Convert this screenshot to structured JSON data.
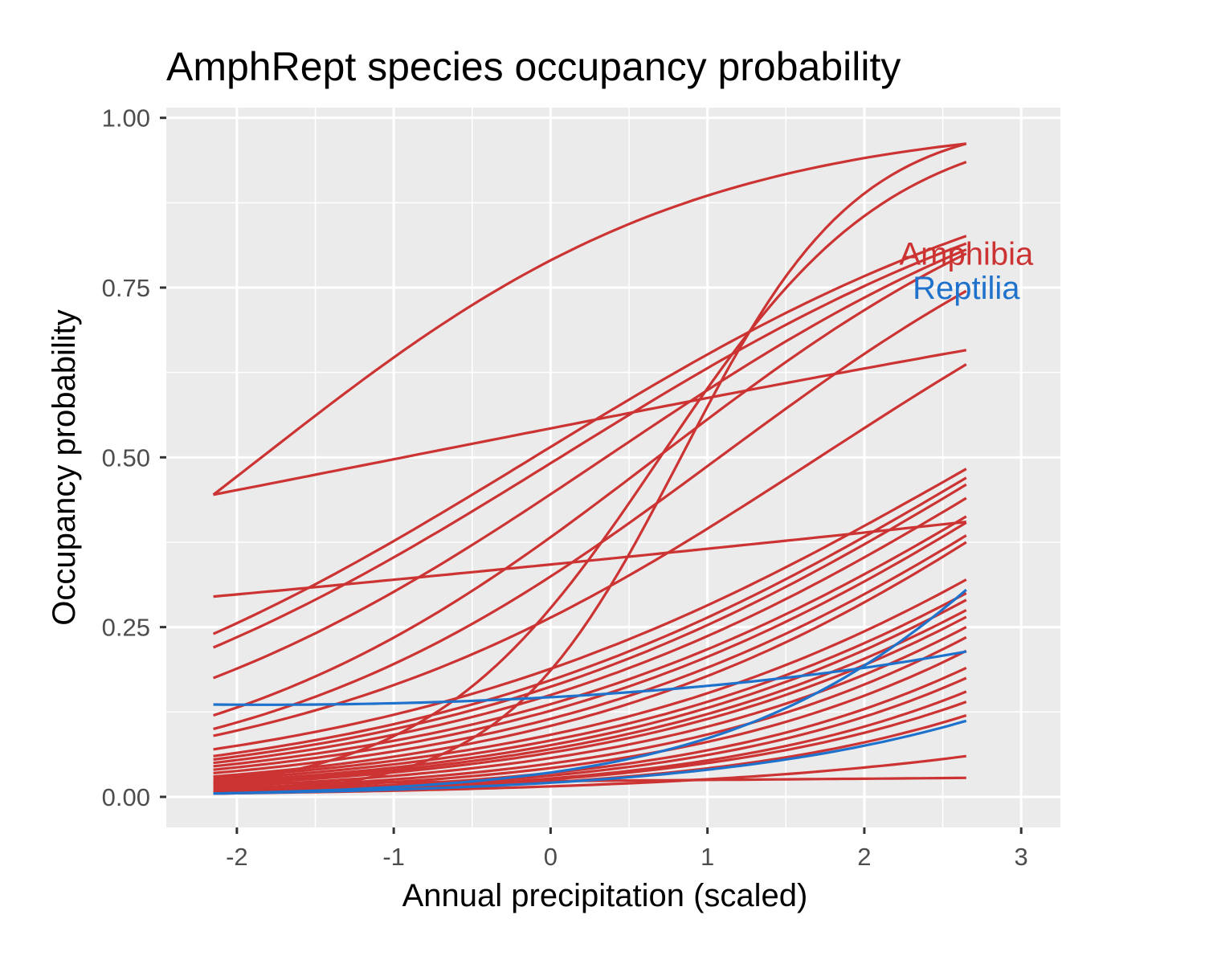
{
  "chart_data": {
    "type": "line",
    "title": "AmphRept species occupancy probability",
    "xlabel": "Annual precipitation (scaled)",
    "ylabel": "Occupancy probability",
    "xlim": [
      -2.45,
      3.25
    ],
    "ylim": [
      -0.045,
      1.015
    ],
    "x_ticks": [
      -2,
      -1,
      0,
      1,
      2,
      3
    ],
    "x_tick_labels": [
      "-2",
      "-1",
      "0",
      "1",
      "2",
      "3"
    ],
    "y_ticks": [
      0,
      0.25,
      0.5,
      0.75,
      1
    ],
    "y_tick_labels": [
      "0.00",
      "0.25",
      "0.50",
      "0.75",
      "1.00"
    ],
    "x_range": [
      -2.15,
      2.65
    ],
    "grid": true,
    "background": "#ebebeb",
    "colors": {
      "Amphibia": "#cc3333",
      "Reptilia": "#1f72cc"
    },
    "group_labels": [
      {
        "name": "Amphibia",
        "text": "Amphibia",
        "color": "#cc3333",
        "x": 2.65,
        "y": 0.8
      },
      {
        "name": "Reptilia",
        "text": "Reptilia",
        "color": "#1f72cc",
        "x": 2.65,
        "y": 0.75
      }
    ],
    "series": [
      {
        "group": "Amphibia",
        "start": 0.445,
        "end": 0.962
      },
      {
        "group": "Amphibia",
        "start": 0.445,
        "end": 0.658
      },
      {
        "group": "Amphibia",
        "start": 0.005,
        "end": 0.962
      },
      {
        "group": "Amphibia",
        "start": 0.02,
        "end": 0.935
      },
      {
        "group": "Amphibia",
        "start": 0.295,
        "end": 0.405
      },
      {
        "group": "Amphibia",
        "start": 0.24,
        "end": 0.826
      },
      {
        "group": "Amphibia",
        "start": 0.22,
        "end": 0.815
      },
      {
        "group": "Amphibia",
        "start": 0.175,
        "end": 0.806
      },
      {
        "group": "Amphibia",
        "start": 0.12,
        "end": 0.8
      },
      {
        "group": "Amphibia",
        "start": 0.1,
        "end": 0.745
      },
      {
        "group": "Amphibia",
        "start": 0.09,
        "end": 0.637
      },
      {
        "group": "Amphibia",
        "start": 0.07,
        "end": 0.483
      },
      {
        "group": "Amphibia",
        "start": 0.06,
        "end": 0.47
      },
      {
        "group": "Amphibia",
        "start": 0.055,
        "end": 0.46
      },
      {
        "group": "Amphibia",
        "start": 0.05,
        "end": 0.44
      },
      {
        "group": "Amphibia",
        "start": 0.045,
        "end": 0.413
      },
      {
        "group": "Amphibia",
        "start": 0.04,
        "end": 0.404
      },
      {
        "group": "Amphibia",
        "start": 0.035,
        "end": 0.385
      },
      {
        "group": "Amphibia",
        "start": 0.03,
        "end": 0.375
      },
      {
        "group": "Amphibia",
        "start": 0.028,
        "end": 0.32
      },
      {
        "group": "Amphibia",
        "start": 0.025,
        "end": 0.3
      },
      {
        "group": "Amphibia",
        "start": 0.022,
        "end": 0.29
      },
      {
        "group": "Amphibia",
        "start": 0.02,
        "end": 0.275
      },
      {
        "group": "Amphibia",
        "start": 0.018,
        "end": 0.265
      },
      {
        "group": "Amphibia",
        "start": 0.015,
        "end": 0.25
      },
      {
        "group": "Amphibia",
        "start": 0.012,
        "end": 0.235
      },
      {
        "group": "Amphibia",
        "start": 0.01,
        "end": 0.215
      },
      {
        "group": "Amphibia",
        "start": 0.008,
        "end": 0.19
      },
      {
        "group": "Amphibia",
        "start": 0.007,
        "end": 0.175
      },
      {
        "group": "Amphibia",
        "start": 0.006,
        "end": 0.155
      },
      {
        "group": "Amphibia",
        "start": 0.006,
        "end": 0.14
      },
      {
        "group": "Amphibia",
        "start": 0.005,
        "end": 0.12
      },
      {
        "group": "Amphibia",
        "start": 0.005,
        "end": 0.06
      },
      {
        "group": "Amphibia",
        "start": 0.02,
        "end": 0.028
      },
      {
        "group": "Reptilia",
        "start": 0.136,
        "mid": 0.131,
        "end": 0.214
      },
      {
        "group": "Reptilia",
        "start": 0.005,
        "end": 0.305
      },
      {
        "group": "Reptilia",
        "start": 0.005,
        "end": 0.112
      }
    ]
  }
}
